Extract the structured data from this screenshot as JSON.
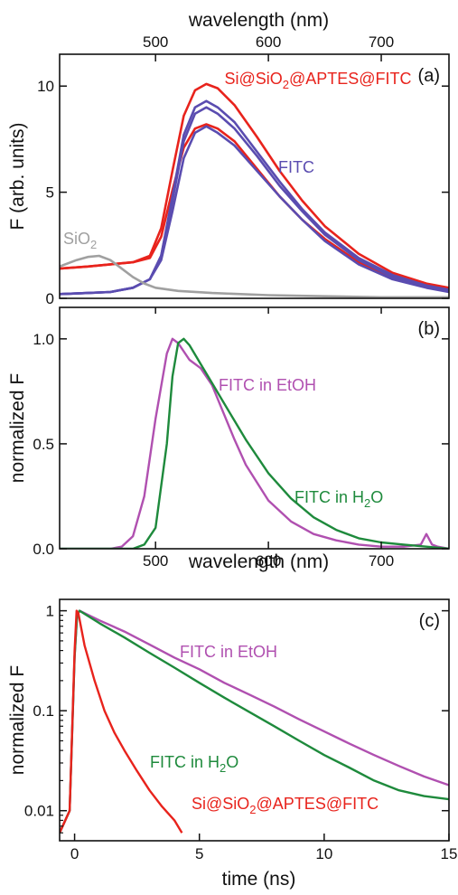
{
  "chart_data": [
    {
      "id": "a",
      "type": "line",
      "panel_label": "(a)",
      "xlabel": "wavelength (nm)",
      "xaxis_position": "top",
      "ylabel": "F (arb. units)",
      "xlim": [
        415,
        760
      ],
      "ylim": [
        0,
        11.5
      ],
      "xticks": [
        "500",
        "600",
        "700"
      ],
      "yticks": [
        "0",
        "5",
        "10"
      ],
      "xtick_values": [
        500,
        600,
        700
      ],
      "ytick_values": [
        0,
        5,
        10
      ],
      "annotations": [
        {
          "text": "Si@SiO",
          "sub": "2",
          "rest": "@APTES@FITC",
          "color": "#e8231c"
        },
        {
          "text": "FITC",
          "sub": "",
          "rest": "",
          "color": "#5a4cb0"
        },
        {
          "text": "SiO",
          "sub": "2",
          "rest": "",
          "color": "#a0a0a0"
        }
      ],
      "series": [
        {
          "color": "#e8231c",
          "x": [
            415,
            440,
            460,
            480,
            495,
            505,
            515,
            525,
            535,
            545,
            555,
            570,
            590,
            610,
            630,
            650,
            680,
            710,
            740,
            760
          ],
          "values": [
            1.4,
            1.5,
            1.6,
            1.7,
            2.0,
            3.3,
            6.0,
            8.6,
            9.8,
            10.1,
            9.9,
            9.1,
            7.6,
            6.0,
            4.6,
            3.4,
            2.1,
            1.2,
            0.7,
            0.5
          ]
        },
        {
          "color": "#e8231c",
          "x": [
            415,
            440,
            460,
            480,
            495,
            505,
            515,
            525,
            535,
            545,
            555,
            570,
            590,
            610,
            630,
            650,
            680,
            710,
            740,
            760
          ],
          "values": [
            1.4,
            1.5,
            1.6,
            1.7,
            1.9,
            2.9,
            5.1,
            7.1,
            8.0,
            8.2,
            8.0,
            7.4,
            6.1,
            4.8,
            3.7,
            2.8,
            1.7,
            1.0,
            0.6,
            0.4
          ]
        },
        {
          "color": "#5a4cb0",
          "x": [
            415,
            440,
            460,
            480,
            495,
            505,
            515,
            525,
            535,
            545,
            555,
            570,
            590,
            610,
            630,
            650,
            680,
            710,
            740,
            760
          ],
          "values": [
            0.2,
            0.25,
            0.3,
            0.5,
            0.9,
            2.0,
            4.8,
            7.7,
            9.0,
            9.3,
            9.0,
            8.3,
            6.9,
            5.5,
            4.2,
            3.1,
            1.9,
            1.1,
            0.6,
            0.4
          ]
        },
        {
          "color": "#5a4cb0",
          "x": [
            415,
            440,
            460,
            480,
            495,
            505,
            515,
            525,
            535,
            545,
            555,
            570,
            590,
            610,
            630,
            650,
            680,
            710,
            740,
            760
          ],
          "values": [
            0.2,
            0.25,
            0.3,
            0.5,
            0.9,
            2.0,
            4.6,
            7.4,
            8.7,
            9.0,
            8.7,
            8.0,
            6.7,
            5.3,
            4.1,
            3.0,
            1.8,
            1.0,
            0.6,
            0.4
          ]
        },
        {
          "color": "#5a4cb0",
          "x": [
            415,
            440,
            460,
            480,
            495,
            505,
            515,
            525,
            535,
            545,
            555,
            570,
            590,
            610,
            630,
            650,
            680,
            710,
            740,
            760
          ],
          "values": [
            0.2,
            0.25,
            0.3,
            0.5,
            0.9,
            1.8,
            4.1,
            6.6,
            7.8,
            8.1,
            7.8,
            7.2,
            6.0,
            4.8,
            3.7,
            2.7,
            1.6,
            0.9,
            0.5,
            0.3
          ]
        },
        {
          "color": "#a0a0a0",
          "x": [
            415,
            430,
            440,
            450,
            460,
            470,
            480,
            490,
            500,
            520,
            550,
            600,
            650,
            700,
            760
          ],
          "values": [
            1.5,
            1.8,
            1.95,
            2.0,
            1.8,
            1.4,
            1.0,
            0.7,
            0.5,
            0.35,
            0.25,
            0.15,
            0.1,
            0.05,
            0.05
          ]
        }
      ]
    },
    {
      "id": "b",
      "type": "line",
      "panel_label": "(b)",
      "xlabel": "wavelength (nm)",
      "ylabel": "normalized F",
      "xlim": [
        415,
        760
      ],
      "ylim": [
        0,
        1.15
      ],
      "xticks": [
        "500",
        "600",
        "700"
      ],
      "yticks": [
        "0.0",
        "0.5",
        "1.0"
      ],
      "xtick_values": [
        500,
        600,
        700
      ],
      "ytick_values": [
        0,
        0.5,
        1.0
      ],
      "series": [
        {
          "name": "FITC in EtOH",
          "color": "#b050b0",
          "x": [
            415,
            460,
            470,
            480,
            490,
            500,
            510,
            515,
            520,
            530,
            540,
            550,
            560,
            570,
            580,
            600,
            620,
            640,
            660,
            680,
            700,
            720,
            735,
            740,
            745,
            750,
            760
          ],
          "values": [
            0,
            0.0,
            0.01,
            0.06,
            0.25,
            0.62,
            0.93,
            1.0,
            0.98,
            0.9,
            0.86,
            0.78,
            0.65,
            0.52,
            0.4,
            0.23,
            0.13,
            0.07,
            0.04,
            0.02,
            0.01,
            0.01,
            0.02,
            0.07,
            0.02,
            0.01,
            0.0
          ]
        },
        {
          "name": "FITC in H2O",
          "color": "#1e8a3c",
          "x": [
            415,
            480,
            490,
            500,
            510,
            515,
            520,
            525,
            530,
            540,
            550,
            560,
            570,
            580,
            600,
            620,
            640,
            660,
            680,
            700,
            720,
            740,
            760
          ],
          "values": [
            0,
            0.0,
            0.02,
            0.1,
            0.5,
            0.82,
            0.98,
            1.0,
            0.97,
            0.88,
            0.79,
            0.7,
            0.61,
            0.52,
            0.36,
            0.24,
            0.15,
            0.09,
            0.05,
            0.03,
            0.02,
            0.01,
            0.0
          ]
        }
      ],
      "annotations": [
        {
          "text": "FITC in EtOH",
          "sub": "",
          "rest": "",
          "color": "#b050b0"
        },
        {
          "text": "FITC in H",
          "sub": "2",
          "rest": "O",
          "color": "#1e8a3c"
        }
      ]
    },
    {
      "id": "c",
      "type": "line",
      "panel_label": "(c)",
      "xlabel": "time (ns)",
      "ylabel": "normalized F",
      "xlim": [
        -0.6,
        15
      ],
      "ylim": [
        0.005,
        1.3
      ],
      "yscale": "log",
      "xticks": [
        "0",
        "5",
        "10",
        "15"
      ],
      "yticks": [
        "0.01",
        "0.1",
        "1"
      ],
      "xtick_values": [
        0,
        5,
        10,
        15
      ],
      "ytick_values": [
        0.01,
        0.1,
        1
      ],
      "series": [
        {
          "name": "FITC in EtOH",
          "color": "#b050b0",
          "x": [
            -0.6,
            -0.2,
            0.0,
            0.1,
            0.2,
            1,
            2,
            3,
            4,
            5,
            6,
            7,
            8,
            9,
            10,
            11,
            12,
            13,
            14,
            15
          ],
          "values": [
            0.006,
            0.01,
            0.35,
            0.9,
            1.0,
            0.8,
            0.62,
            0.46,
            0.34,
            0.26,
            0.19,
            0.145,
            0.11,
            0.082,
            0.062,
            0.047,
            0.036,
            0.028,
            0.022,
            0.018
          ]
        },
        {
          "name": "FITC in H2O",
          "color": "#1e8a3c",
          "x": [
            -0.6,
            -0.2,
            0.0,
            0.1,
            0.2,
            1,
            2,
            3,
            4,
            5,
            6,
            7,
            8,
            9,
            10,
            11,
            12,
            13,
            14,
            15
          ],
          "values": [
            0.006,
            0.01,
            0.35,
            0.9,
            1.0,
            0.75,
            0.54,
            0.38,
            0.27,
            0.19,
            0.135,
            0.097,
            0.07,
            0.05,
            0.036,
            0.027,
            0.02,
            0.016,
            0.014,
            0.013
          ]
        },
        {
          "name": "Si@SiO2@APTES@FITC",
          "color": "#e8231c",
          "x": [
            -0.6,
            -0.2,
            0.0,
            0.08,
            0.15,
            0.4,
            0.8,
            1.2,
            1.6,
            2.0,
            2.5,
            3.0,
            3.5,
            4.0,
            4.3
          ],
          "values": [
            0.006,
            0.01,
            0.4,
            1.0,
            0.95,
            0.45,
            0.2,
            0.1,
            0.06,
            0.04,
            0.025,
            0.016,
            0.011,
            0.008,
            0.006
          ]
        }
      ],
      "annotations": [
        {
          "text": "FITC in EtOH",
          "sub": "",
          "rest": "",
          "color": "#b050b0"
        },
        {
          "text": "FITC in H",
          "sub": "2",
          "rest": "O",
          "color": "#1e8a3c"
        },
        {
          "text": "Si@SiO",
          "sub": "2",
          "rest": "@APTES@FITC",
          "color": "#e8231c"
        }
      ]
    }
  ]
}
